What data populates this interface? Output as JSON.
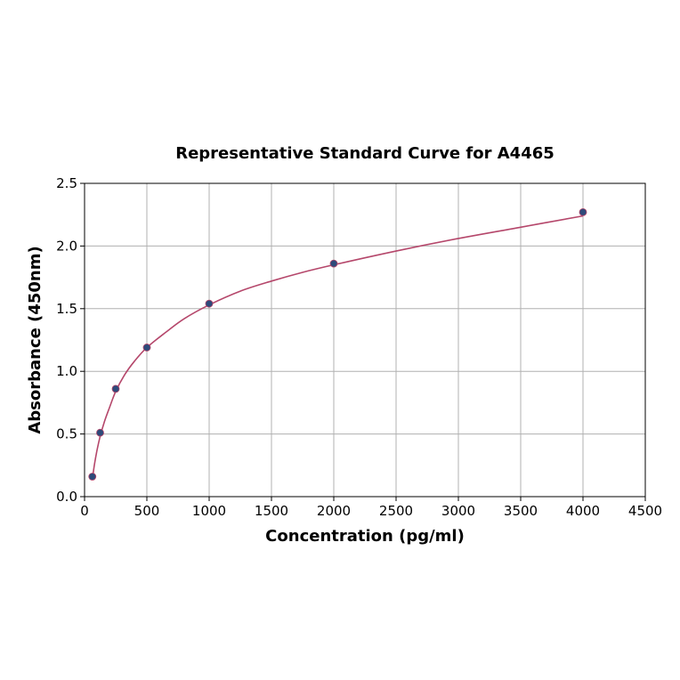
{
  "chart_data": {
    "type": "scatter",
    "title": "Representative Standard Curve for A4465",
    "xlabel": "Concentration (pg/ml)",
    "ylabel": "Absorbance (450nm)",
    "xlim": [
      0,
      4500
    ],
    "ylim": [
      0,
      2.5
    ],
    "xticks": [
      0,
      500,
      1000,
      1500,
      2000,
      2500,
      3000,
      3500,
      4000,
      4500
    ],
    "xtick_labels": [
      "0",
      "500",
      "1000",
      "1500",
      "2000",
      "2500",
      "3000",
      "3500",
      "4000",
      "4500"
    ],
    "yticks": [
      0,
      0.5,
      1.0,
      1.5,
      2.0,
      2.5
    ],
    "ytick_labels": [
      "0.0",
      "0.5",
      "1.0",
      "1.5",
      "2.0",
      "2.5"
    ],
    "grid": true,
    "series": [
      {
        "points": [
          {
            "x": 62.5,
            "y": 0.16
          },
          {
            "x": 125,
            "y": 0.51
          },
          {
            "x": 250,
            "y": 0.86
          },
          {
            "x": 500,
            "y": 1.19
          },
          {
            "x": 1000,
            "y": 1.54
          },
          {
            "x": 2000,
            "y": 1.86
          },
          {
            "x": 4000,
            "y": 2.27
          }
        ],
        "color": "#2e4a7a"
      }
    ],
    "fit_curve": {
      "color": "#b5476b",
      "x": [
        62.5,
        80,
        100,
        125,
        160,
        200,
        250,
        320,
        400,
        500,
        650,
        800,
        1000,
        1250,
        1500,
        1750,
        2000,
        2500,
        3000,
        3500,
        4000
      ],
      "y": [
        0.14,
        0.26,
        0.37,
        0.48,
        0.6,
        0.71,
        0.84,
        0.97,
        1.08,
        1.19,
        1.31,
        1.42,
        1.53,
        1.64,
        1.72,
        1.79,
        1.85,
        1.96,
        2.06,
        2.15,
        2.24
      ]
    }
  }
}
